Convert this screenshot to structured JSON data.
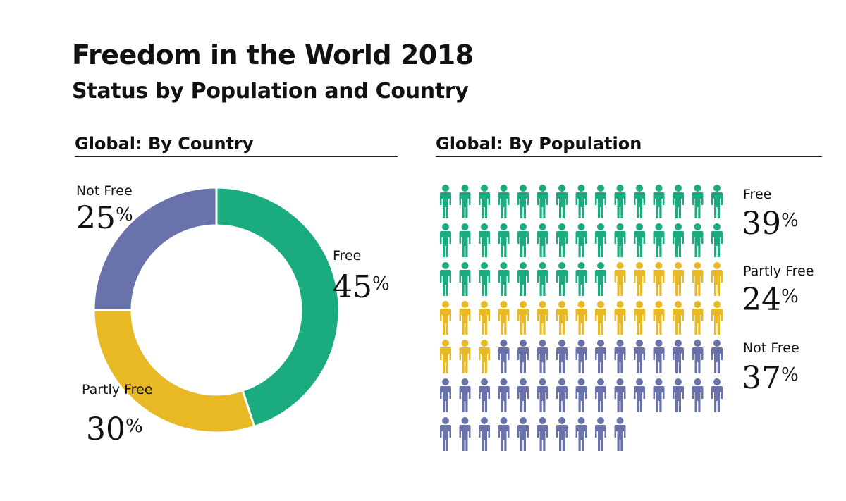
{
  "header": {
    "title": "Freedom in the World 2018",
    "subtitle": "Status by Population and Country"
  },
  "colors": {
    "free": "#1aac7f",
    "partly_free": "#e8b924",
    "not_free": "#6a72ac"
  },
  "chart_data": [
    {
      "type": "pie",
      "title": "Global: By Country",
      "labels": [
        "Free",
        "Partly Free",
        "Not Free"
      ],
      "values": [
        45,
        30,
        25
      ],
      "display": [
        {
          "label": "Free",
          "number": "45",
          "unit": "%"
        },
        {
          "label": "Partly Free",
          "number": "30",
          "unit": "%"
        },
        {
          "label": "Not Free",
          "number": "25",
          "unit": "%"
        }
      ],
      "donut": true
    },
    {
      "type": "pictogram",
      "title": "Global: By Population",
      "labels": [
        "Free",
        "Partly Free",
        "Not Free"
      ],
      "values": [
        39,
        24,
        37
      ],
      "display": [
        {
          "label": "Free",
          "number": "39",
          "unit": "%"
        },
        {
          "label": "Partly Free",
          "number": "24",
          "unit": "%"
        },
        {
          "label": "Not Free",
          "number": "37",
          "unit": "%"
        }
      ],
      "icons_per_row": 15,
      "icon": "person-icon"
    }
  ]
}
